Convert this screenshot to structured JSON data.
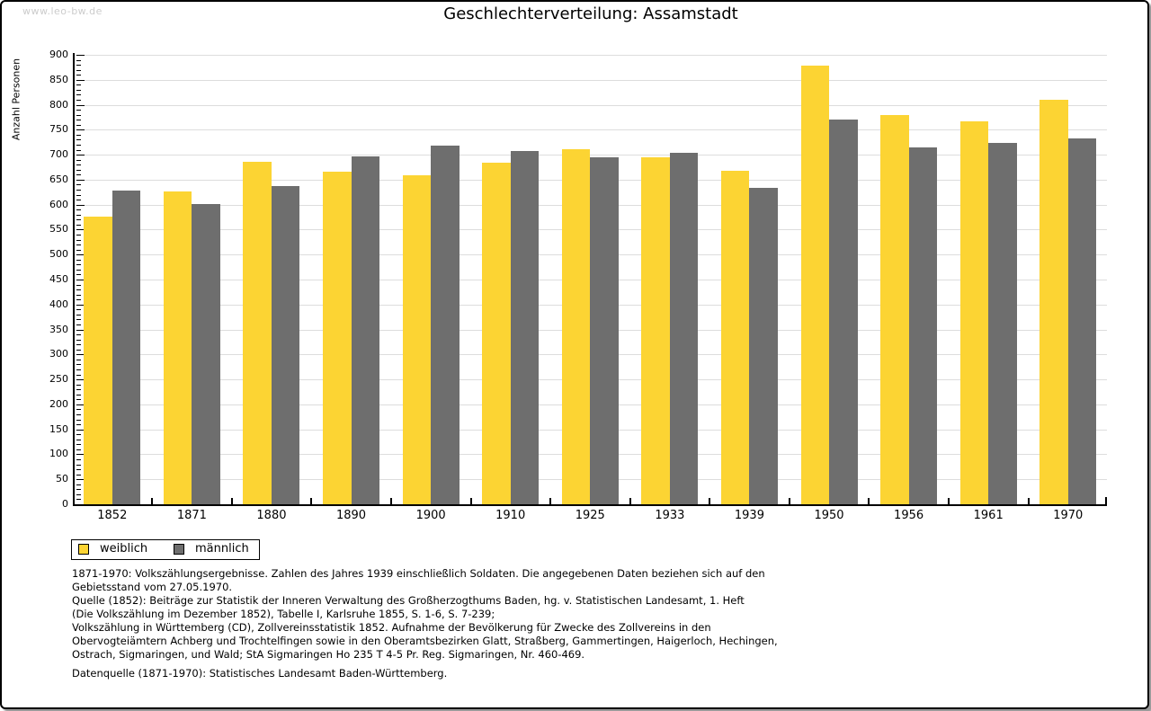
{
  "watermark": "www.leo-bw.de",
  "title": "Geschlechterverteilung: Assamstadt",
  "chart_data": {
    "type": "bar",
    "title": "Geschlechterverteilung: Assamstadt",
    "xlabel": "",
    "ylabel": "Anzahl Personen",
    "ylim": [
      0,
      900
    ],
    "ytick_step": 50,
    "ytick_minor_step": 10,
    "grid": true,
    "legend_position": "bottom-left",
    "categories": [
      "1852",
      "1871",
      "1880",
      "1890",
      "1900",
      "1910",
      "1925",
      "1933",
      "1939",
      "1950",
      "1956",
      "1961",
      "1970"
    ],
    "series": [
      {
        "name": "weiblich",
        "color": "#FCD433",
        "values": [
          576,
          626,
          686,
          666,
          659,
          684,
          711,
          695,
          668,
          878,
          779,
          767,
          810
        ]
      },
      {
        "name": "männlich",
        "color": "#6E6E6E",
        "values": [
          628,
          601,
          637,
          697,
          718,
          707,
          695,
          704,
          633,
          770,
          714,
          723,
          733
        ]
      }
    ]
  },
  "footnotes": {
    "lines": [
      "1871-1970: Volkszählungsergebnisse. Zahlen des Jahres 1939 einschließlich Soldaten. Die angegebenen Daten beziehen sich auf den",
      "Gebietsstand vom 27.05.1970.",
      "Quelle (1852): Beiträge zur Statistik der Inneren Verwaltung des Großherzogthums Baden, hg. v. Statistischen Landesamt, 1. Heft",
      "(Die Volkszählung im Dezember 1852), Tabelle I, Karlsruhe 1855, S. 1-6, S. 7-239;",
      "Volkszählung in Württemberg (CD), Zollvereinsstatistik 1852. Aufnahme der Bevölkerung für Zwecke des Zollvereins in den",
      "Obervogteiämtern Achberg und Trochtelfingen sowie in den Oberamtsbezirken Glatt, Straßberg, Gammertingen, Haigerloch, Hechingen,",
      "Ostrach, Sigmaringen, und Wald; StA Sigmaringen Ho 235 T 4-5 Pr. Reg. Sigmaringen, Nr. 460-469."
    ],
    "datasource": "Datenquelle (1871-1970): Statistisches Landesamt Baden-Württemberg."
  }
}
